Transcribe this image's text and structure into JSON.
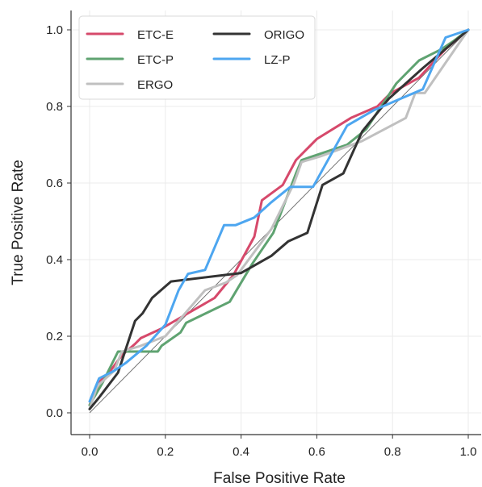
{
  "chart_data": {
    "type": "line",
    "xlabel": "False Positive Rate",
    "ylabel": "True Positive Rate",
    "xlim": [
      -0.05,
      1.03
    ],
    "ylim": [
      -0.05,
      1.05
    ],
    "xticks": [
      "0.0",
      "0.2",
      "0.4",
      "0.6",
      "0.8",
      "1.0"
    ],
    "yticks": [
      "0.0",
      "0.2",
      "0.4",
      "0.6",
      "0.8",
      "1.0"
    ],
    "grid": true,
    "legend": {
      "placement": "top-left",
      "columns": 2
    },
    "diagonal": {
      "x": [
        0,
        1
      ],
      "y": [
        0,
        1
      ]
    },
    "series": [
      {
        "name": "ETC-E",
        "color": "#d6496b",
        "x": [
          0.0,
          0.025,
          0.055,
          0.085,
          0.12,
          0.135,
          0.19,
          0.26,
          0.33,
          0.38,
          0.435,
          0.455,
          0.51,
          0.545,
          0.6,
          0.69,
          0.76,
          0.795,
          0.815,
          0.87,
          0.94,
          1.0
        ],
        "y": [
          0.02,
          0.08,
          0.11,
          0.15,
          0.18,
          0.195,
          0.22,
          0.26,
          0.3,
          0.36,
          0.46,
          0.555,
          0.595,
          0.66,
          0.715,
          0.77,
          0.8,
          0.835,
          0.845,
          0.875,
          0.95,
          1.0
        ]
      },
      {
        "name": "ETC-P",
        "color": "#5fa371",
        "x": [
          0.0,
          0.035,
          0.075,
          0.085,
          0.18,
          0.19,
          0.24,
          0.255,
          0.37,
          0.43,
          0.485,
          0.545,
          0.56,
          0.68,
          0.73,
          0.81,
          0.87,
          0.93,
          0.96,
          1.0
        ],
        "y": [
          0.02,
          0.08,
          0.16,
          0.16,
          0.16,
          0.175,
          0.21,
          0.235,
          0.29,
          0.39,
          0.47,
          0.625,
          0.66,
          0.7,
          0.74,
          0.86,
          0.92,
          0.95,
          0.97,
          1.0
        ]
      },
      {
        "name": "ERGO",
        "color": "#c0c0c0",
        "x": [
          0.0,
          0.02,
          0.065,
          0.085,
          0.135,
          0.2,
          0.305,
          0.36,
          0.39,
          0.48,
          0.54,
          0.56,
          0.61,
          0.72,
          0.835,
          0.86,
          0.885,
          1.0
        ],
        "y": [
          0.01,
          0.07,
          0.11,
          0.16,
          0.175,
          0.2,
          0.32,
          0.34,
          0.36,
          0.48,
          0.6,
          0.655,
          0.67,
          0.71,
          0.77,
          0.835,
          0.835,
          1.0
        ]
      },
      {
        "name": "ORIGO",
        "color": "#333333",
        "x": [
          0.0,
          0.025,
          0.075,
          0.12,
          0.14,
          0.165,
          0.215,
          0.4,
          0.48,
          0.525,
          0.575,
          0.615,
          0.67,
          0.72,
          0.79,
          0.88,
          1.0
        ],
        "y": [
          0.01,
          0.04,
          0.105,
          0.24,
          0.26,
          0.3,
          0.343,
          0.365,
          0.41,
          0.448,
          0.47,
          0.595,
          0.625,
          0.735,
          0.82,
          0.9,
          1.0
        ]
      },
      {
        "name": "LZ-P",
        "color": "#4da6f0",
        "x": [
          0.0,
          0.025,
          0.065,
          0.095,
          0.15,
          0.2,
          0.235,
          0.26,
          0.305,
          0.355,
          0.385,
          0.435,
          0.48,
          0.53,
          0.59,
          0.68,
          0.75,
          0.88,
          0.94,
          1.0
        ],
        "y": [
          0.03,
          0.09,
          0.11,
          0.13,
          0.175,
          0.23,
          0.32,
          0.363,
          0.373,
          0.49,
          0.49,
          0.51,
          0.55,
          0.59,
          0.59,
          0.75,
          0.79,
          0.845,
          0.98,
          1.0
        ]
      }
    ]
  }
}
